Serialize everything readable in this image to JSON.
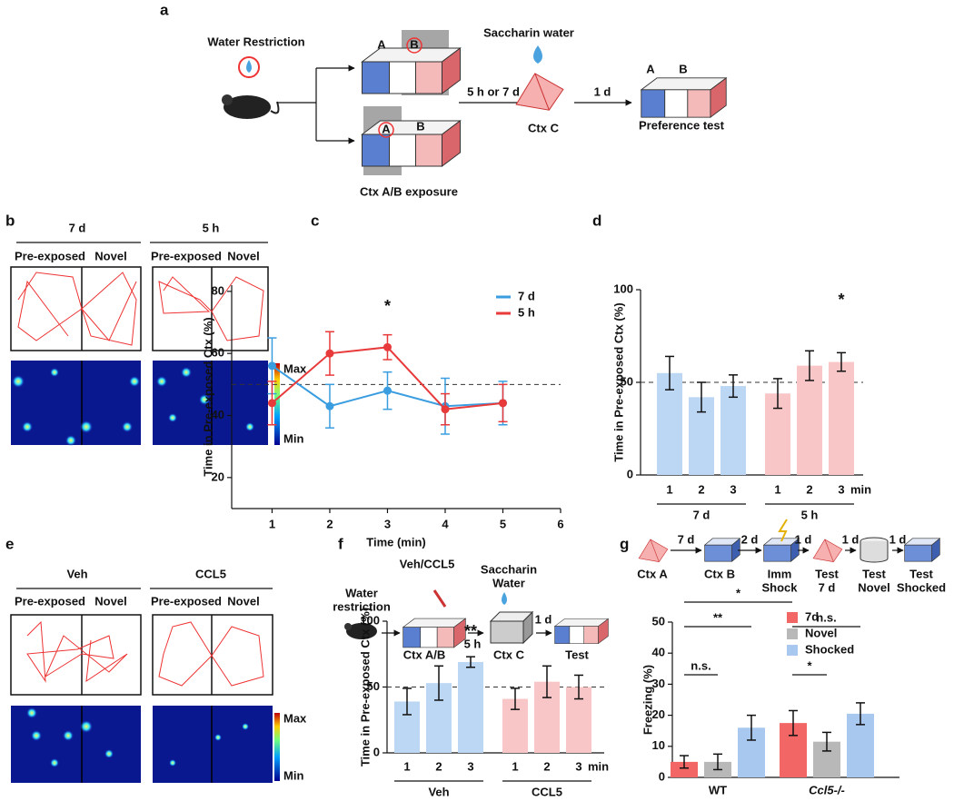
{
  "panel_labels": {
    "a": "a",
    "b": "b",
    "c": "c",
    "d": "d",
    "e": "e",
    "f": "f",
    "g": "g"
  },
  "schematic_a": {
    "water_restriction": "Water Restriction",
    "context_labels": [
      "A",
      "B",
      "A",
      "B"
    ],
    "interval_1": "5 h or 7 d",
    "saccharin": "Saccharin water",
    "ctx_c": "Ctx C",
    "interval_2": "1 d",
    "test_labels": [
      "A",
      "B"
    ],
    "test": "Preference test",
    "exposure": "Ctx A/B exposure"
  },
  "panel_b": {
    "conditions": [
      "7 d",
      "5 h"
    ],
    "zones": [
      "Pre-exposed",
      "Novel"
    ],
    "colorbar": [
      "Max",
      "Min"
    ]
  },
  "panel_e": {
    "conditions": [
      "Veh",
      "CCL5"
    ],
    "zones": [
      "Pre-exposed",
      "Novel"
    ],
    "colorbar": [
      "Max",
      "Min"
    ]
  },
  "schematic_f": {
    "water_restriction": [
      "Water",
      "restriction"
    ],
    "treatment": "Veh/CCL5",
    "saccharin": [
      "Saccharin",
      "Water"
    ],
    "intervals": [
      "5 h",
      "1 d"
    ],
    "steps": [
      "Ctx A/B",
      "Ctx C",
      "Test"
    ]
  },
  "schematic_g": {
    "steps": [
      [
        "Ctx A"
      ],
      [
        "Ctx B"
      ],
      [
        "Imm",
        "Shock"
      ],
      [
        "Test",
        "7 d"
      ],
      [
        "Test",
        "Novel"
      ],
      [
        "Test",
        "Shocked"
      ]
    ],
    "intervals": [
      "7 d",
      "2 d",
      "1 d",
      "1 d",
      "1 d"
    ]
  },
  "chart_data": [
    {
      "type": "line",
      "ylabel": "Time in Pre-exposed Ctx (%)",
      "xlabel": "Time (min)",
      "x": [
        1,
        2,
        3,
        4,
        5
      ],
      "xlim": [
        0.3,
        6
      ],
      "xticks": [
        1,
        2,
        3,
        4,
        5,
        6
      ],
      "ylim": [
        10,
        82
      ],
      "yticks": [
        20,
        40,
        60,
        80
      ],
      "reference_line": 50,
      "series": [
        {
          "name": "7 d",
          "color": "#3a9de0",
          "values": [
            56,
            43,
            48,
            43,
            44
          ],
          "errors": [
            9,
            7,
            6,
            9,
            7
          ]
        },
        {
          "name": "5 h",
          "color": "#e83a3a",
          "values": [
            44,
            60,
            62,
            42,
            44
          ],
          "errors": [
            7,
            7,
            4,
            5,
            6
          ]
        }
      ],
      "annotations": [
        {
          "text": "*",
          "x": 3
        }
      ]
    },
    {
      "type": "bar",
      "ylabel": "Time in Pre-exposed Ctx (%)",
      "categories": [
        "1",
        "2",
        "3",
        "1",
        "2",
        "3"
      ],
      "values": [
        55,
        42,
        48,
        44,
        59,
        61
      ],
      "errors": [
        9,
        8,
        6,
        8,
        8,
        5
      ],
      "colors": [
        "#bcd7f3",
        "#bcd7f3",
        "#bcd7f3",
        "#f8c6c6",
        "#f8c6c6",
        "#f8c6c6"
      ],
      "group_labels": [
        "7 d",
        "5 h"
      ],
      "unit_label": "min",
      "ylim": [
        0,
        100
      ],
      "yticks": [
        0,
        50,
        100
      ],
      "reference_line": 50,
      "annotations": [
        {
          "text": "*",
          "index": 5
        }
      ]
    },
    {
      "type": "bar",
      "ylabel": "Time in Pre-exposed Ctx (%)",
      "categories": [
        "1",
        "2",
        "3",
        "1",
        "2",
        "3"
      ],
      "values": [
        39,
        53,
        69,
        41,
        54,
        50
      ],
      "errors": [
        10,
        13,
        4,
        8,
        12,
        9
      ],
      "colors": [
        "#bcd7f3",
        "#bcd7f3",
        "#bcd7f3",
        "#f8c6c6",
        "#f8c6c6",
        "#f8c6c6"
      ],
      "group_labels": [
        "Veh",
        "CCL5"
      ],
      "unit_label": "min",
      "ylim": [
        0,
        100
      ],
      "yticks": [
        0,
        50,
        100
      ],
      "reference_line": 50,
      "annotations": [
        {
          "text": "**",
          "index": 2
        }
      ]
    },
    {
      "type": "bar",
      "ylabel": "Freezing (%)",
      "categories": [
        "WT",
        "Ccl5-/-"
      ],
      "ylim": [
        0,
        50
      ],
      "yticks": [
        0,
        10,
        20,
        30,
        40,
        50
      ],
      "series": [
        {
          "name": "7d",
          "color": "#f26666",
          "values": [
            5,
            17.5
          ],
          "errors": [
            2,
            4
          ]
        },
        {
          "name": "Novel",
          "color": "#b8b8b8",
          "values": [
            5,
            11.5
          ],
          "errors": [
            2.5,
            3
          ]
        },
        {
          "name": "Shocked",
          "color": "#a9c8f0",
          "values": [
            16,
            20.5
          ],
          "errors": [
            4,
            3.5
          ]
        }
      ],
      "significance": [
        "*",
        "**",
        "n.s.",
        "n.s.",
        "*"
      ]
    }
  ]
}
